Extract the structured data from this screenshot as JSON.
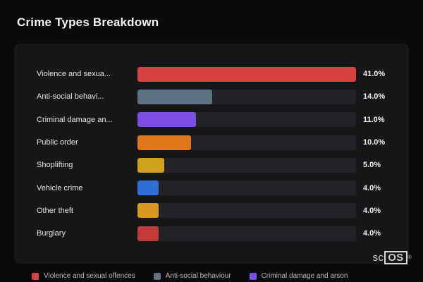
{
  "page": {
    "title": "Crime Types Breakdown"
  },
  "chart_data": {
    "type": "bar",
    "orientation": "horizontal",
    "title": "Crime Types Breakdown",
    "categories": [
      "Violence and sexua...",
      "Anti-social behavi...",
      "Criminal damage an...",
      "Public order",
      "Shoplifting",
      "Vehicle crime",
      "Other theft",
      "Burglary"
    ],
    "values": [
      41.0,
      14.0,
      11.0,
      10.0,
      5.0,
      4.0,
      4.0,
      4.0
    ],
    "value_labels": [
      "41.0%",
      "14.0%",
      "11.0%",
      "10.0%",
      "5.0%",
      "4.0%",
      "4.0%",
      "4.0%"
    ],
    "bar_colors": [
      "#d64343",
      "#5f7282",
      "#7d4ee3",
      "#e0761b",
      "#cfa01d",
      "#2f6fd6",
      "#d8991e",
      "#c23a3a"
    ],
    "xlim": [
      0,
      41
    ],
    "grid": false,
    "legend_position": "bottom",
    "legend": [
      {
        "label": "Violence and sexual offences",
        "color": "#d64343"
      },
      {
        "label": "Anti-social behaviour",
        "color": "#5f7282"
      },
      {
        "label": "Criminal damage and arson",
        "color": "#7d4ee3"
      }
    ]
  },
  "branding": {
    "prefix": "sc",
    "box": "OS",
    "reg": "®"
  },
  "colors": {
    "page_bg": "#0a0a0c",
    "card_bg": "#17171a",
    "track_bg": "#222228",
    "title_text": "#f2f2f4",
    "label_text": "#e4e4e6",
    "legend_text": "#bcbcc0"
  }
}
